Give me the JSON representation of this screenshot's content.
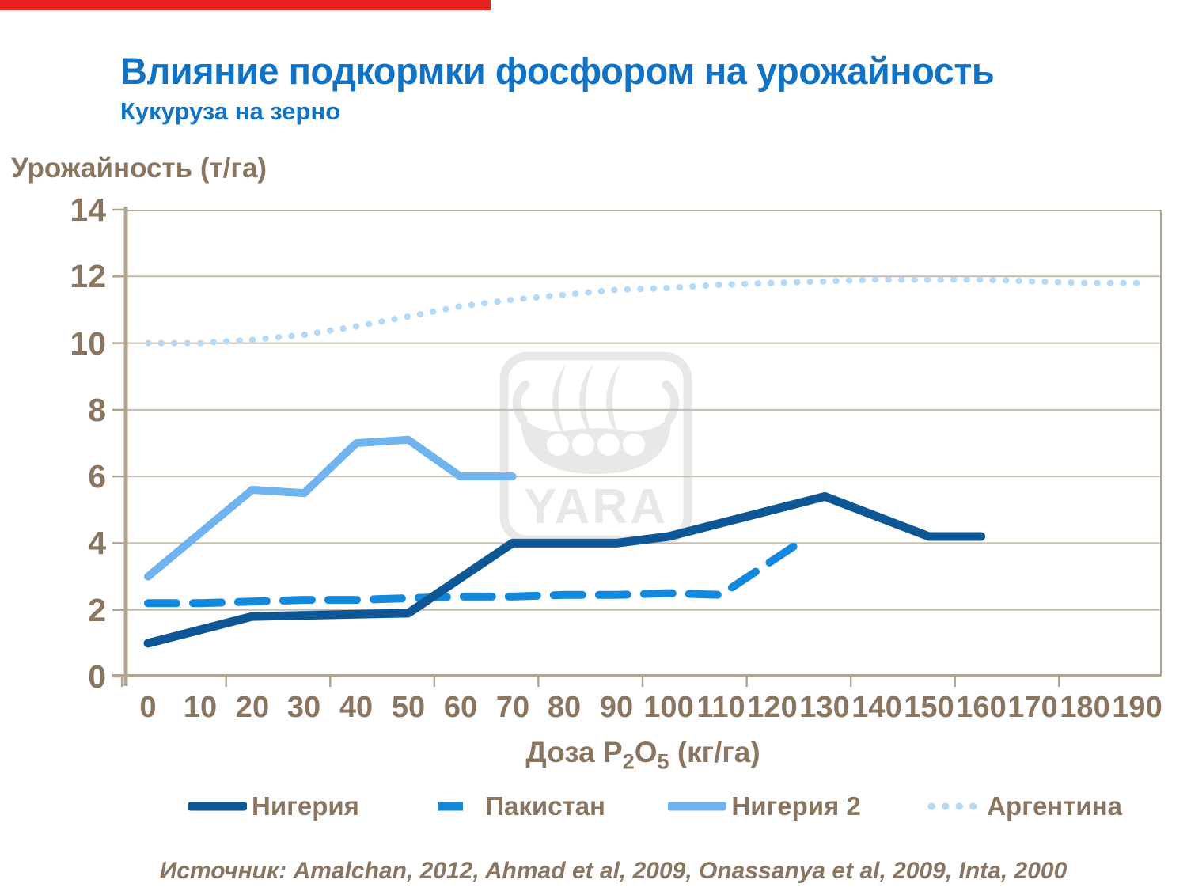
{
  "page": {
    "title": "Влияние подкормки фосфором на урожайность",
    "subtitle": "Кукуруза на зерно",
    "title_color": "#1173c5",
    "accent_bar_color": "#e8231d",
    "watermark_text": "YARA",
    "source_note": "Источник: Amalchan, 2012, Ahmad et al, 2009, Onassanya et al, 2009, Inta, 2000"
  },
  "chart_data": {
    "type": "line",
    "title": "Влияние подкормки фосфором на урожайность",
    "subtitle": "Кукуруза на зерно",
    "ylabel": "Урожайность (т/га)",
    "xlabel": "Доза P2O5 (кг/га)",
    "xlabel_parts": [
      "Доза P",
      "2",
      "O",
      "5",
      "  (кг/га)"
    ],
    "ylim": [
      0,
      14
    ],
    "xlim": [
      0,
      190
    ],
    "yticks": [
      0,
      2,
      4,
      6,
      8,
      10,
      12,
      14
    ],
    "categories": [
      "0",
      "10",
      "20",
      "30",
      "40",
      "50",
      "60",
      "70",
      "80",
      "90",
      "100",
      "110",
      "120",
      "130",
      "140",
      "150",
      "160",
      "170",
      "180",
      "190"
    ],
    "grid": "horizontal",
    "legend_position": "bottom",
    "colors": {
      "axis_text": "#8a7560",
      "gridline": "#c7bbac",
      "axis_line": "#b3a492"
    },
    "series": [
      {
        "name": "Нигерия",
        "key": "nigeria",
        "color": "#0e5796",
        "style": "solid",
        "width": 11,
        "points": [
          [
            0,
            1.0
          ],
          [
            20,
            1.8
          ],
          [
            50,
            1.9
          ],
          [
            70,
            4.0
          ],
          [
            90,
            4.0
          ],
          [
            100,
            4.2
          ],
          [
            130,
            5.4
          ],
          [
            150,
            4.2
          ],
          [
            160,
            4.2
          ]
        ]
      },
      {
        "name": "Пакистан",
        "key": "pakistan",
        "color": "#1289dc",
        "style": "dashed",
        "width": 10,
        "points": [
          [
            0,
            2.2
          ],
          [
            10,
            2.2
          ],
          [
            20,
            2.25
          ],
          [
            30,
            2.3
          ],
          [
            40,
            2.3
          ],
          [
            50,
            2.35
          ],
          [
            60,
            2.4
          ],
          [
            70,
            2.4
          ],
          [
            80,
            2.45
          ],
          [
            90,
            2.45
          ],
          [
            100,
            2.5
          ],
          [
            110,
            2.45
          ],
          [
            125,
            4.0
          ]
        ]
      },
      {
        "name": "Нигерия 2",
        "key": "nigeria-2",
        "color": "#6fb4ef",
        "style": "solid",
        "width": 10,
        "points": [
          [
            0,
            3.0
          ],
          [
            20,
            5.6
          ],
          [
            30,
            5.5
          ],
          [
            40,
            7.0
          ],
          [
            50,
            7.1
          ],
          [
            60,
            6.0
          ],
          [
            70,
            6.0
          ]
        ]
      },
      {
        "name": "Аргентина",
        "key": "argentina",
        "color": "#b5d9f6",
        "style": "dotted",
        "width": 8,
        "points": [
          [
            0,
            10.0
          ],
          [
            10,
            10.0
          ],
          [
            20,
            10.1
          ],
          [
            30,
            10.25
          ],
          [
            40,
            10.5
          ],
          [
            50,
            10.8
          ],
          [
            60,
            11.1
          ],
          [
            70,
            11.3
          ],
          [
            80,
            11.45
          ],
          [
            90,
            11.6
          ],
          [
            100,
            11.65
          ],
          [
            110,
            11.75
          ],
          [
            120,
            11.8
          ],
          [
            130,
            11.85
          ],
          [
            140,
            11.9
          ],
          [
            150,
            11.9
          ],
          [
            160,
            11.9
          ],
          [
            170,
            11.85
          ],
          [
            180,
            11.8
          ],
          [
            190,
            11.8
          ]
        ]
      }
    ]
  }
}
